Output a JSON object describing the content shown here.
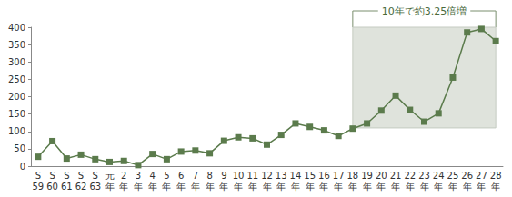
{
  "chart_data": {
    "type": "line",
    "categories": [
      "S\n59",
      "S\n60",
      "S\n61",
      "S\n62",
      "S\n63",
      "元\n年",
      "2\n年",
      "3\n年",
      "4\n年",
      "5\n年",
      "6\n年",
      "7\n年",
      "8\n年",
      "9\n年",
      "10\n年",
      "11\n年",
      "12\n年",
      "13\n年",
      "14\n年",
      "15\n年",
      "16\n年",
      "17\n年",
      "18\n年",
      "19\n年",
      "20\n年",
      "21\n年",
      "22\n年",
      "23\n年",
      "24\n年",
      "25\n年",
      "26\n年",
      "27\n年",
      "28\n年"
    ],
    "values": [
      27,
      72,
      22,
      33,
      20,
      12,
      15,
      3,
      35,
      20,
      42,
      45,
      37,
      73,
      83,
      80,
      62,
      90,
      123,
      113,
      103,
      87,
      108,
      123,
      160,
      203,
      162,
      128,
      152,
      255,
      385,
      395,
      360
    ],
    "color": "#5b7b4c",
    "marker": "square",
    "ylim": [
      0,
      400
    ],
    "yticks": [
      0,
      50,
      100,
      150,
      200,
      250,
      300,
      350,
      400
    ],
    "grid": false,
    "annotation": {
      "text": "10年で約3.25倍増",
      "x_from": "18\n年",
      "x_to": "28\n年",
      "y_from": 110,
      "y_to": 400
    }
  }
}
